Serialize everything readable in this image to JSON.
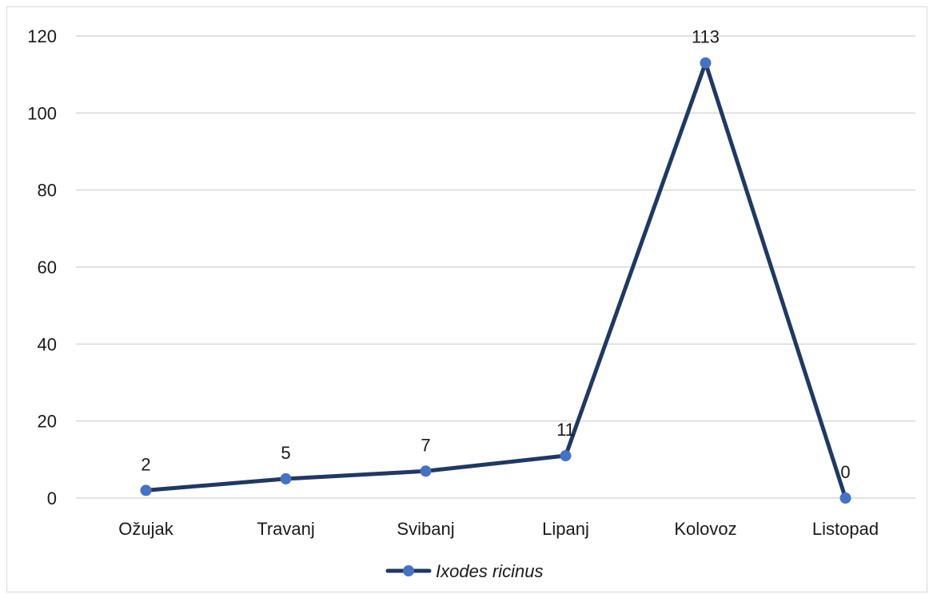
{
  "chart_data": {
    "type": "line",
    "categories": [
      "Ožujak",
      "Travanj",
      "Svibanj",
      "Lipanj",
      "Kolovoz",
      "Listopad"
    ],
    "series": [
      {
        "name": "Ixodes ricinus",
        "values": [
          2,
          5,
          7,
          11,
          113,
          0
        ]
      }
    ],
    "data_labels": [
      "2",
      "5",
      "7",
      "11",
      "113",
      "0"
    ],
    "ylim": [
      0,
      120
    ],
    "yticks": [
      0,
      20,
      40,
      60,
      80,
      100,
      120
    ],
    "grid": "horizontal",
    "legend_position": "bottom",
    "colors": {
      "line": "#203864",
      "marker": "#4472c4",
      "grid": "#d9d9d9"
    }
  }
}
